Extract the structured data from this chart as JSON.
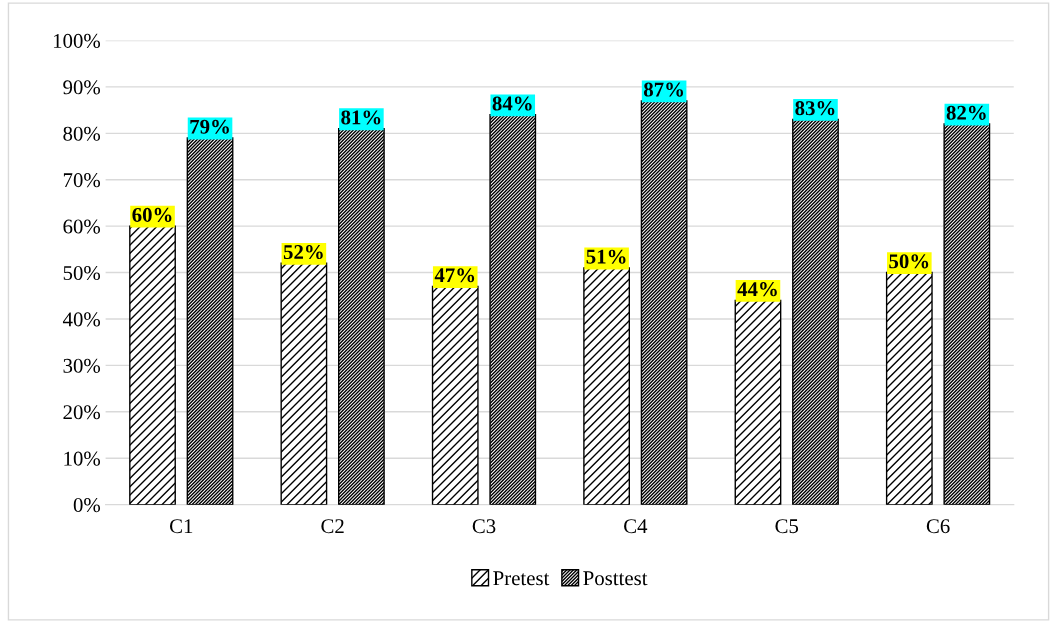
{
  "chart_data": {
    "type": "bar",
    "categories": [
      "C1",
      "C2",
      "C3",
      "C4",
      "C5",
      "C6"
    ],
    "series": [
      {
        "name": "Pretest",
        "color": "#000000",
        "values": [
          60,
          52,
          47,
          51,
          44,
          50
        ],
        "value_labels": [
          "60%",
          "52%",
          "47%",
          "51%",
          "44%",
          "50%"
        ]
      },
      {
        "name": "Posttest",
        "color": "#000000",
        "values": [
          79,
          81,
          84,
          87,
          83,
          82
        ],
        "value_labels": [
          "79%",
          "81%",
          "84%",
          "87%",
          "83%",
          "82%"
        ]
      }
    ],
    "ylim": [
      0,
      100
    ],
    "yticks": [
      {
        "value": 0,
        "label": "0%"
      },
      {
        "value": 10,
        "label": "10%"
      },
      {
        "value": 20,
        "label": "20%"
      },
      {
        "value": 30,
        "label": "30%"
      },
      {
        "value": 40,
        "label": "40%"
      },
      {
        "value": 50,
        "label": "50%"
      },
      {
        "value": 60,
        "label": "60%"
      },
      {
        "value": 70,
        "label": "70%"
      },
      {
        "value": 80,
        "label": "80%"
      },
      {
        "value": 90,
        "label": "90%"
      },
      {
        "value": 100,
        "label": "100%"
      }
    ],
    "grid": "y",
    "legend": "bottom"
  }
}
